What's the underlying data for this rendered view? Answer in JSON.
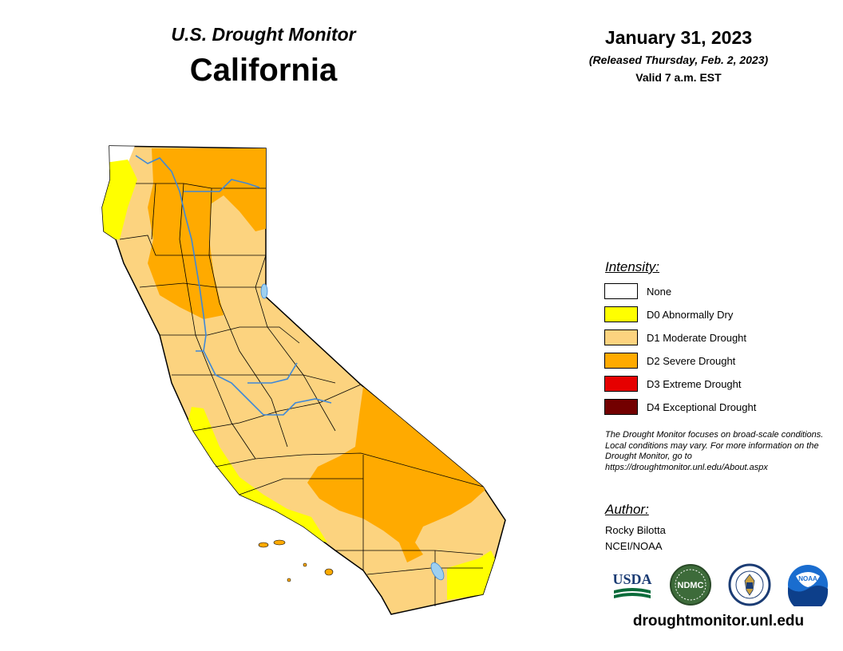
{
  "header": {
    "subtitle": "U.S. Drought Monitor",
    "title": "California",
    "date": "January 31, 2023",
    "released": "(Released Thursday, Feb. 2, 2023)",
    "valid": "Valid 7 a.m. EST"
  },
  "legend": {
    "title": "Intensity:",
    "items": [
      {
        "label": "None",
        "color": "#ffffff"
      },
      {
        "label": "D0 Abnormally Dry",
        "color": "#ffff00"
      },
      {
        "label": "D1 Moderate Drought",
        "color": "#fcd37f"
      },
      {
        "label": "D2 Severe Drought",
        "color": "#ffaa00"
      },
      {
        "label": "D3 Extreme Drought",
        "color": "#e60000"
      },
      {
        "label": "D4 Exceptional Drought",
        "color": "#730000"
      }
    ]
  },
  "note": "The Drought Monitor focuses on broad-scale conditions. Local conditions may vary. For more information on the Drought Monitor, go to https://droughtmonitor.unl.edu/About.aspx",
  "author": {
    "title": "Author:",
    "name": "Rocky Bilotta",
    "org": "NCEI/NOAA"
  },
  "logos": {
    "usda": "USDA",
    "ndmc": "NDMC",
    "noaa": "NOAA"
  },
  "website": "droughtmonitor.unl.edu",
  "colors": {
    "d0": "#ffff00",
    "d1": "#fcd37f",
    "d2": "#ffaa00",
    "river": "#3e88d8",
    "lake": "#9ed0f0",
    "county_line": "#000000"
  },
  "icons": [
    "usda-logo-icon",
    "ndmc-logo-icon",
    "commerce-seal-icon",
    "noaa-logo-icon"
  ]
}
